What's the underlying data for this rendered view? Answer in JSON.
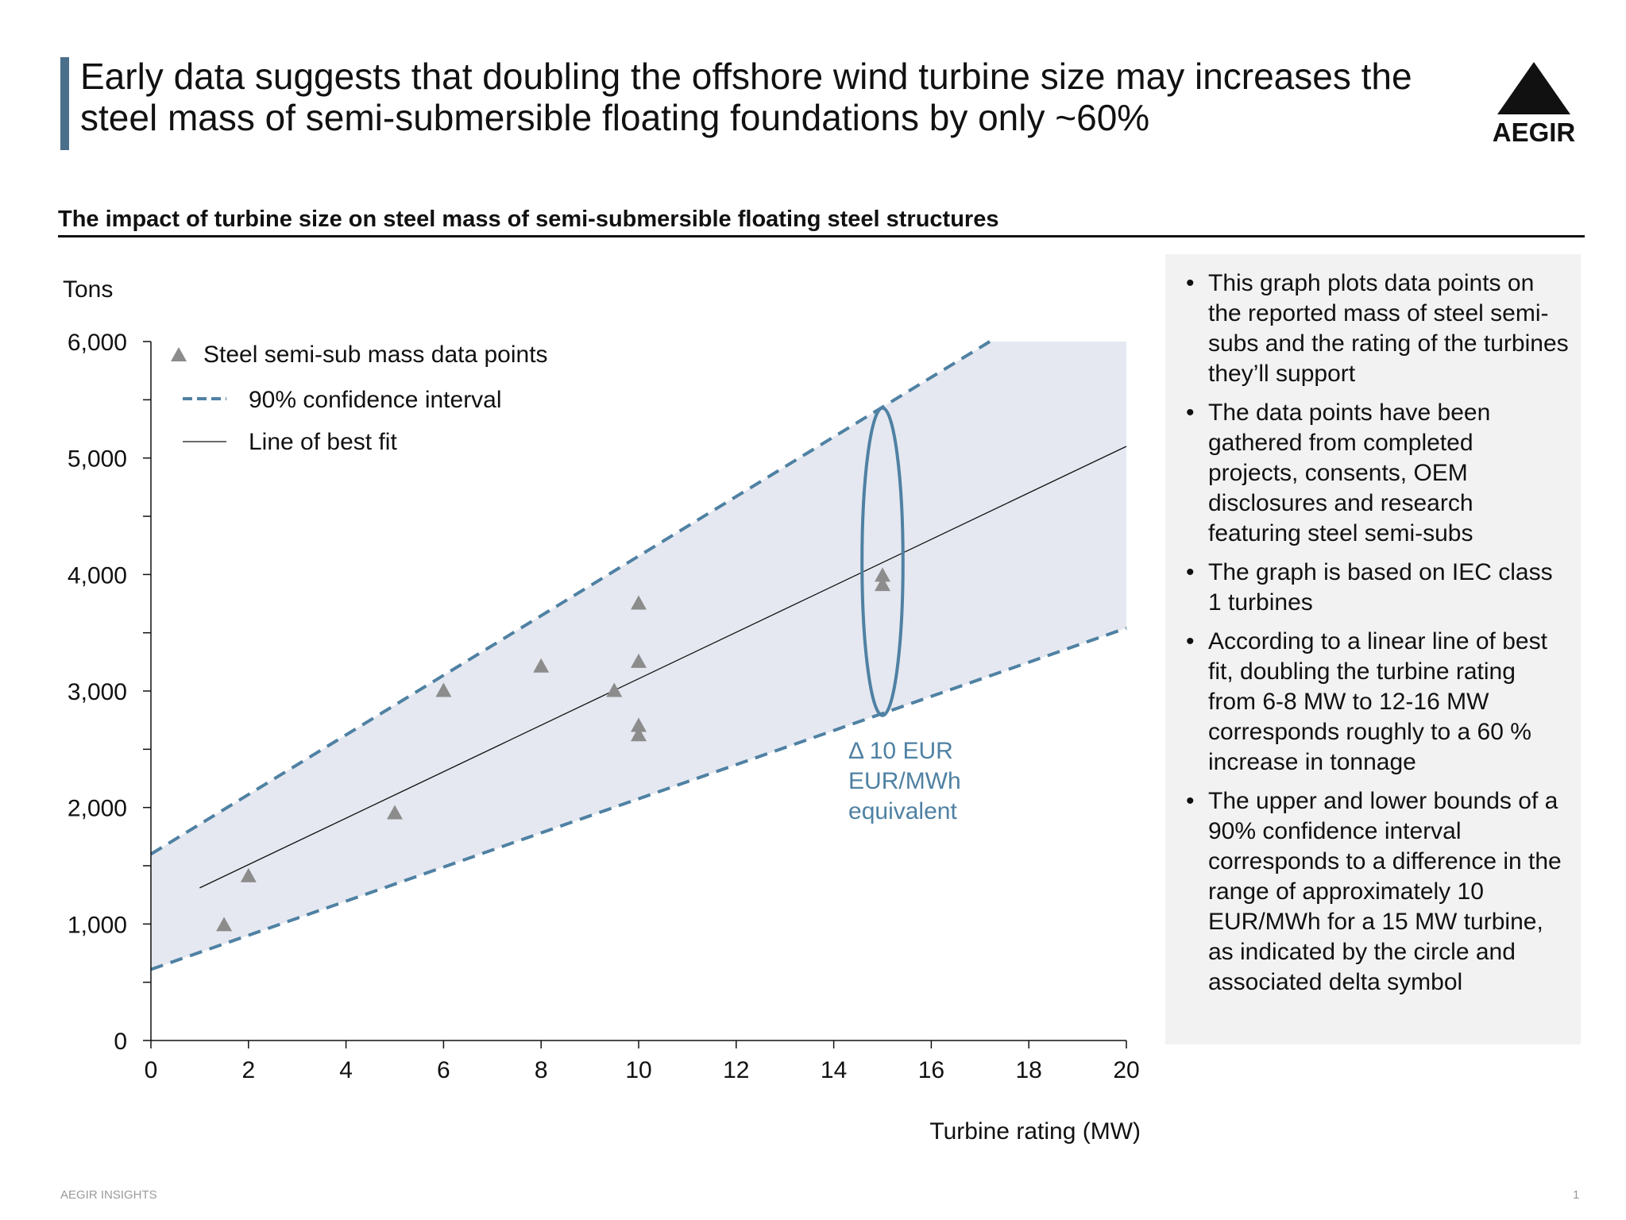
{
  "header": {
    "title": "Early data suggests that doubling the offshore wind turbine size may increases the steel mass of semi-submersible floating foundations by only ~60%",
    "logo_text": "AEGIR"
  },
  "subtitle": "The impact of turbine size on steel mass of semi-submersible floating steel structures",
  "chart_data": {
    "type": "scatter",
    "ylabel": "Tons",
    "xlabel": "Turbine rating (MW)",
    "xlim": [
      0,
      20
    ],
    "ylim": [
      0,
      6000
    ],
    "x_ticks": [
      0,
      2,
      4,
      6,
      8,
      10,
      12,
      14,
      16,
      18,
      20
    ],
    "y_ticks": [
      0,
      1000,
      2000,
      3000,
      4000,
      5000,
      6000
    ],
    "x_tick_labels": [
      "0",
      "2",
      "4",
      "6",
      "8",
      "10",
      "12",
      "14",
      "16",
      "18",
      "20"
    ],
    "y_tick_labels": [
      "0",
      "1,000",
      "2,000",
      "3,000",
      "4,000",
      "5,000",
      "6,000"
    ],
    "grid": false,
    "legend_position": "top-left",
    "legend": [
      {
        "label": "Steel semi-sub mass data points",
        "marker": "triangle"
      },
      {
        "label": "90% confidence interval",
        "marker": "dashed-line"
      },
      {
        "label": "Line of best fit",
        "marker": "solid-line"
      }
    ],
    "series": [
      {
        "name": "Steel semi-sub mass data points",
        "points": [
          {
            "x": 1.5,
            "y": 1000
          },
          {
            "x": 2,
            "y": 1420
          },
          {
            "x": 5,
            "y": 1960
          },
          {
            "x": 6,
            "y": 3010
          },
          {
            "x": 8,
            "y": 3220
          },
          {
            "x": 9.5,
            "y": 3010
          },
          {
            "x": 10,
            "y": 3760
          },
          {
            "x": 10,
            "y": 3260
          },
          {
            "x": 10,
            "y": 2710
          },
          {
            "x": 10,
            "y": 2630
          },
          {
            "x": 15,
            "y": 4000
          },
          {
            "x": 15,
            "y": 3920
          }
        ]
      },
      {
        "name": "Line of best fit",
        "line": [
          {
            "x": 1,
            "y": 1310
          },
          {
            "x": 20,
            "y": 5100
          }
        ]
      },
      {
        "name": "90% confidence interval (upper)",
        "line": [
          {
            "x": 0,
            "y": 1600
          },
          {
            "x": 17.2,
            "y": 6000
          }
        ]
      },
      {
        "name": "90% confidence interval (lower)",
        "line": [
          {
            "x": 0,
            "y": 610
          },
          {
            "x": 20,
            "y": 3540
          }
        ]
      }
    ],
    "band_right_edge_x": 20,
    "ellipse": {
      "cx": 15,
      "cy": 4110,
      "rx": 0.42,
      "ry": 1320
    },
    "annotation": {
      "lines": [
        "Δ 10 EUR",
        "EUR/MWh",
        "equivalent"
      ],
      "x": 14.3,
      "y": 2420
    },
    "colors": {
      "accent": "#4f81a3",
      "band": "#e5e8f0",
      "marker": "#8c8c8c",
      "fit": "#111111",
      "axis": "#111111"
    }
  },
  "notes": [
    "This graph plots data points on the reported mass of steel semi-subs and the rating of the turbines they’ll support",
    "The data points have been gathered from completed projects, consents, OEM disclosures and research featuring steel semi-subs",
    "The graph is based on IEC class 1 turbines",
    "According to a linear line of best fit, doubling the turbine rating from 6-8 MW to 12-16 MW corresponds roughly to a 60 % increase in tonnage",
    "The upper and lower bounds of a 90% confidence interval corresponds to a difference in the range of approximately 10 EUR/MWh for a 15 MW turbine, as indicated by the circle and associated delta symbol"
  ],
  "footer": {
    "left": "AEGIR INSIGHTS",
    "right": "1"
  }
}
